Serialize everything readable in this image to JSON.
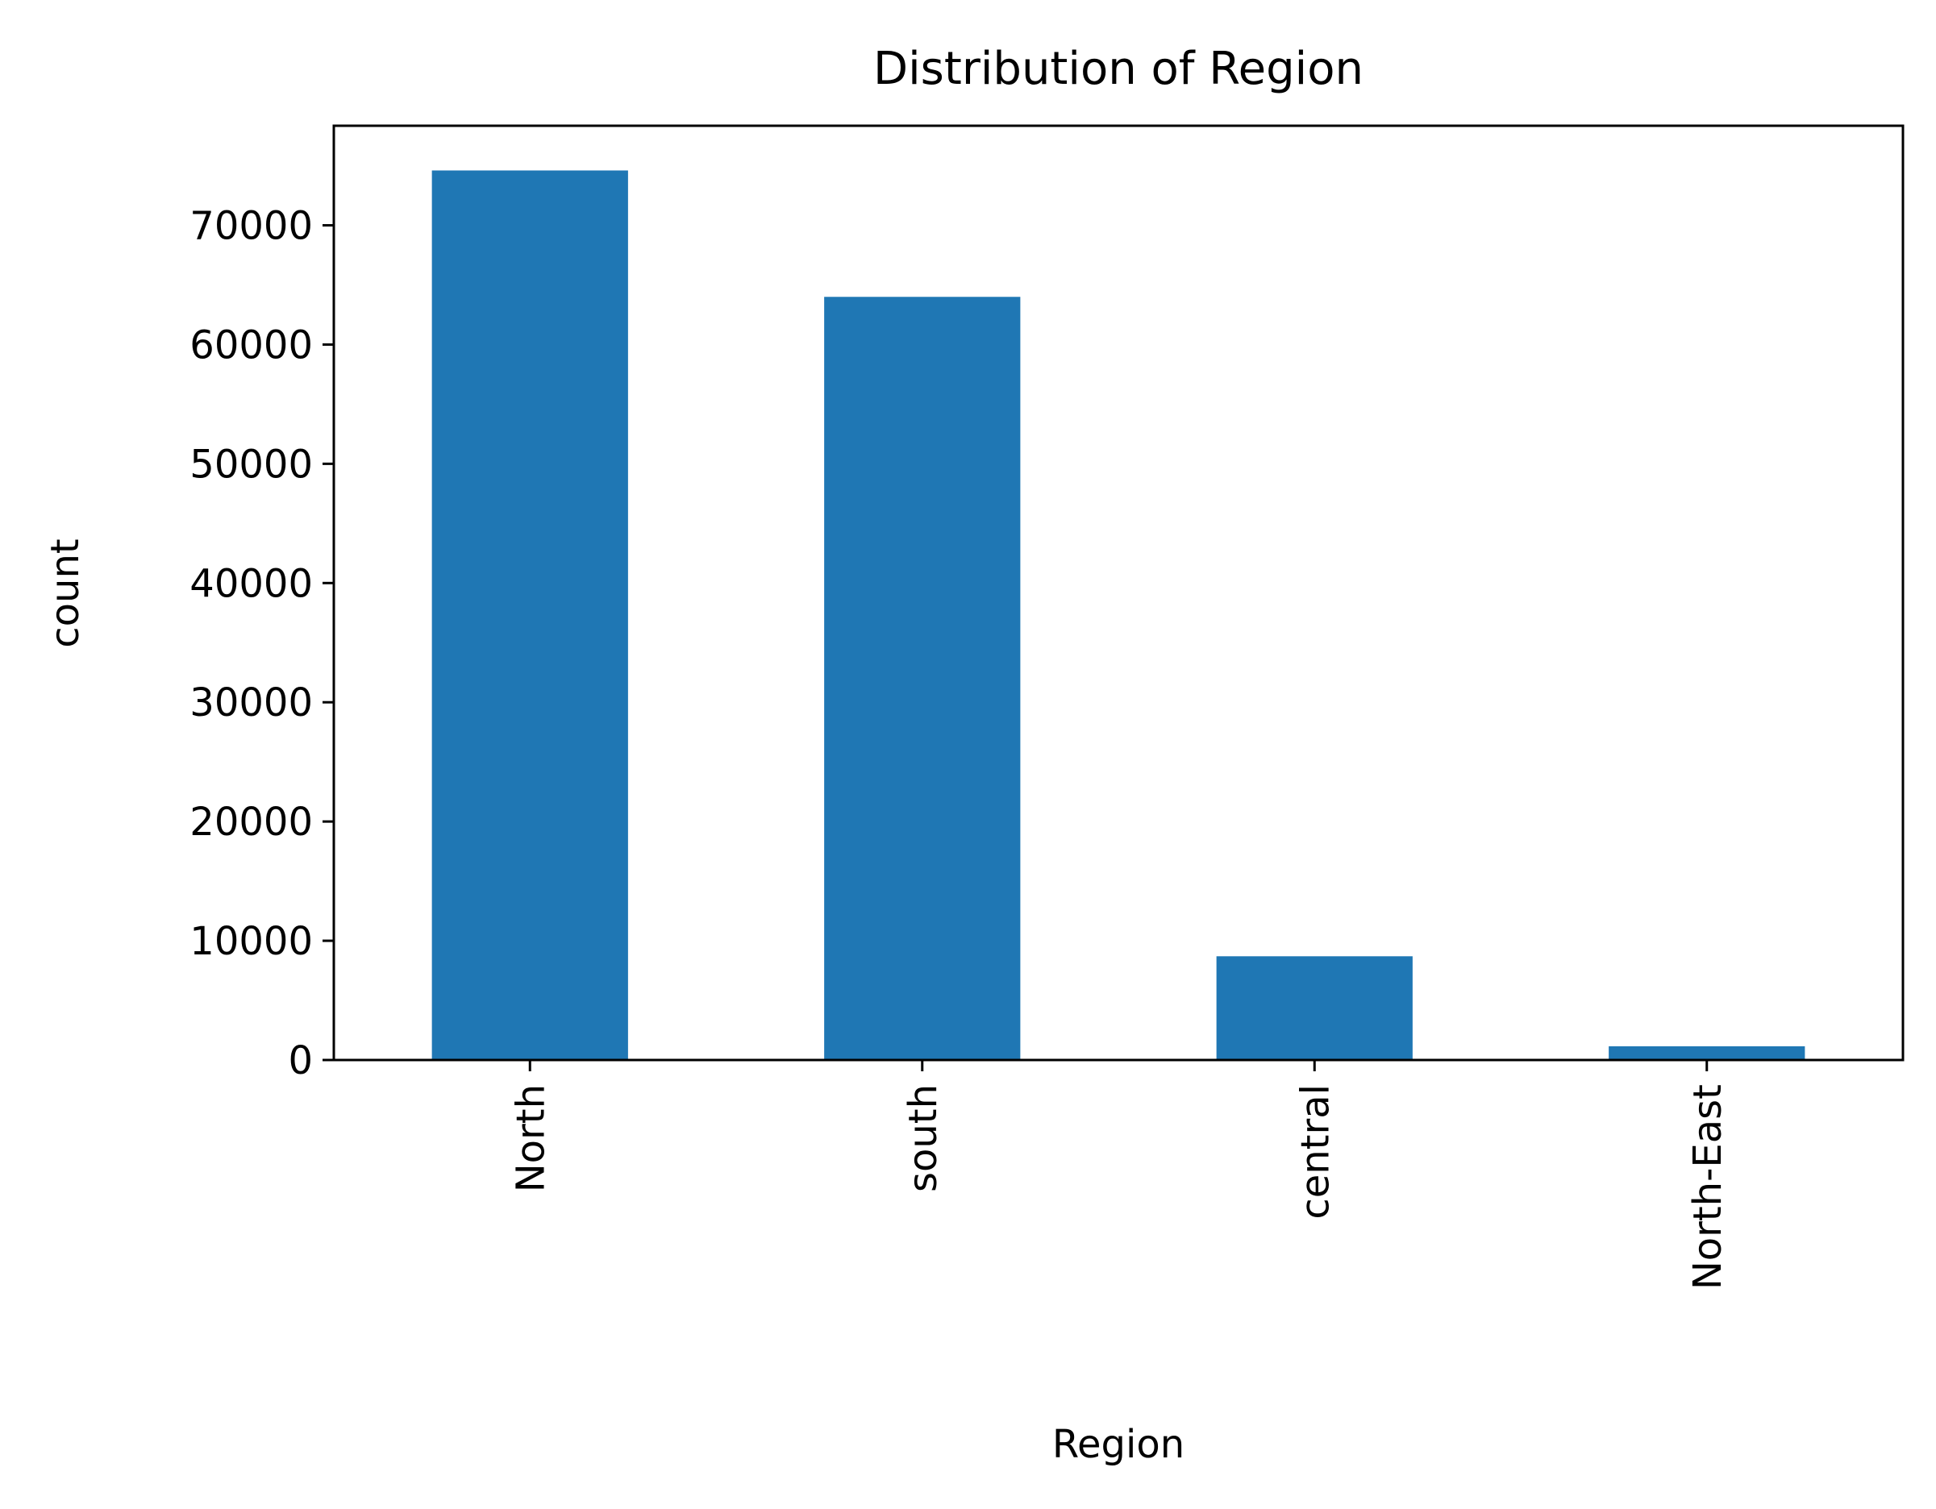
{
  "chart_data": {
    "type": "bar",
    "title": "Distribution of Region",
    "xlabel": "Region",
    "ylabel": "count",
    "categories": [
      "North",
      "south",
      "central",
      "North-East"
    ],
    "values": [
      74600,
      64000,
      8700,
      1150
    ],
    "ylim": [
      0,
      78350
    ],
    "yticks": [
      0,
      10000,
      20000,
      30000,
      40000,
      50000,
      60000,
      70000
    ],
    "ytick_labels": [
      "0",
      "10000",
      "20000",
      "30000",
      "40000",
      "50000",
      "60000",
      "70000"
    ],
    "grid": false,
    "legend": "none",
    "bar_color": "#1f77b4",
    "axis_color": "#000000"
  }
}
